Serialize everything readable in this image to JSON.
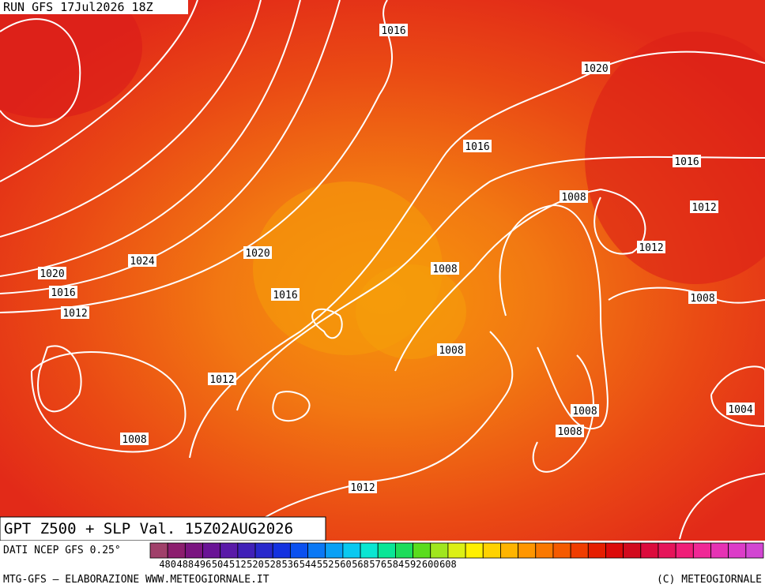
{
  "header": {
    "run": "RUN GFS 17Jul2026 18Z"
  },
  "map": {
    "isobar_labels": [
      "1016",
      "1020",
      "1016",
      "1016",
      "1008",
      "1012",
      "1024",
      "1020",
      "1012",
      "1008",
      "1020",
      "1016",
      "1016",
      "1008",
      "1012",
      "1008",
      "1012",
      "1008",
      "1004",
      "1008",
      "1008",
      "1012"
    ]
  },
  "footer": {
    "title": "GPT Z500 + SLP Val. 15Z02AUG2026",
    "source": "DATI NCEP GFS 0.25°",
    "credit": "MTG-GFS — ELABORAZIONE WWW.METEOGIORNALE.IT",
    "copyright": "(C) METEOGIORNALE"
  },
  "colorbar": {
    "colors": [
      "#a0406a",
      "#8c1e6e",
      "#7a1480",
      "#6a1496",
      "#5a1aa8",
      "#4020b8",
      "#2828cc",
      "#1432e0",
      "#0a50f0",
      "#0a78f5",
      "#0aa0f5",
      "#0ac8f0",
      "#0ae6d2",
      "#0ae696",
      "#1edc5a",
      "#5adc1e",
      "#a0e61e",
      "#dcf014",
      "#fff000",
      "#ffd200",
      "#ffb400",
      "#ff9600",
      "#fa7800",
      "#f55a00",
      "#f03c00",
      "#e61e00",
      "#dc0a0a",
      "#d20a1e",
      "#dc0a3c",
      "#e6145a",
      "#f01e78",
      "#f02896",
      "#e632b4",
      "#dc3cc8",
      "#d246d2"
    ],
    "labels": [
      "480",
      "488",
      "496",
      "504",
      "512",
      "520",
      "528",
      "536",
      "544",
      "552",
      "560",
      "568",
      "576",
      "584",
      "592",
      "600",
      "608"
    ]
  }
}
